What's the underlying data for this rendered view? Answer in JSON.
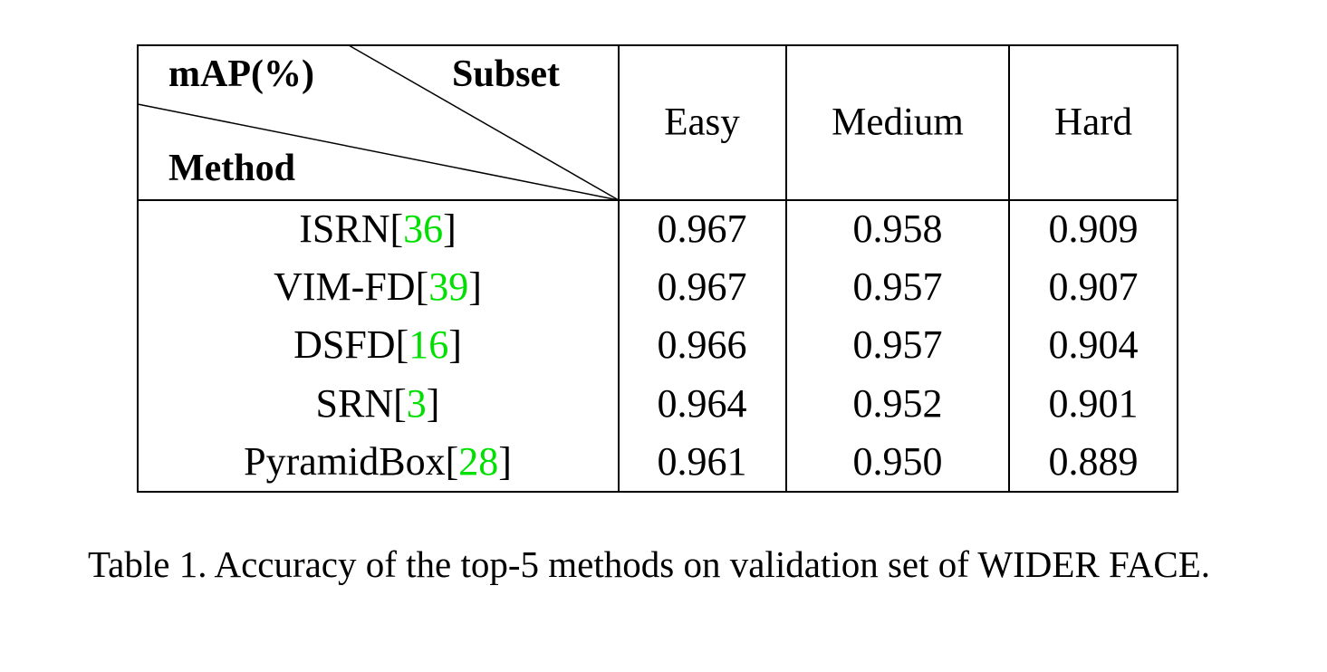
{
  "table": {
    "header": {
      "corner": {
        "metric": "mAP(%)",
        "columns": "Subset",
        "rows": "Method"
      },
      "columns": [
        "Easy",
        "Medium",
        "Hard"
      ]
    },
    "citation_brackets": [
      "[",
      "]"
    ],
    "rows": [
      {
        "method": "ISRN",
        "ref": "36",
        "values": [
          "0.967",
          "0.958",
          "0.909"
        ]
      },
      {
        "method": "VIM-FD",
        "ref": "39",
        "values": [
          "0.967",
          "0.957",
          "0.907"
        ]
      },
      {
        "method": "DSFD",
        "ref": "16",
        "values": [
          "0.966",
          "0.957",
          "0.904"
        ]
      },
      {
        "method": "SRN",
        "ref": "3",
        "values": [
          "0.964",
          "0.952",
          "0.901"
        ]
      },
      {
        "method": "PyramidBox",
        "ref": "28",
        "values": [
          "0.961",
          "0.950",
          "0.889"
        ]
      }
    ]
  },
  "caption": "Table 1. Accuracy of the top-5 methods on validation set of WIDER FACE."
}
